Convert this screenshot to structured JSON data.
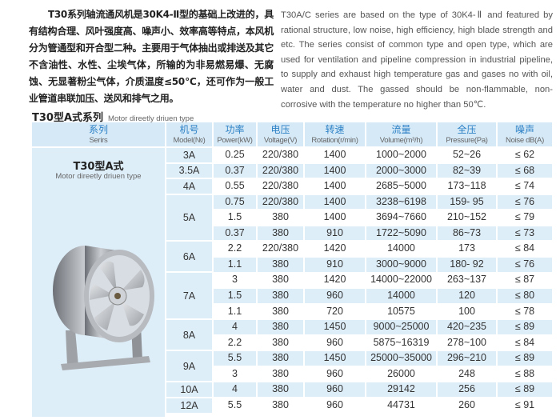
{
  "intro_zh": "T30系列轴流通风机是30K4-Ⅱ型的基础上改进的，具有结构合理、风叶强度高、噪声小、效率高等特点，本风机分为管通型和开合型二种。主要用于气体抽出或排送及其它不含油性、水性、尘埃气体，所输的为非易燃易爆、无腐蚀、无显著粉尘气体，介质温度≤50℃，还可作为一般工业管道串联加压、送风和排气之用。",
  "intro_en": "T30A/C series are based on the type of 30K4-Ⅱ and featured by rational structure, low noise, high efficiency, high blade strength and etc. The series consist of common type and open type, which are used for ventilation and pipeline compression in industrial pipeline, to supply and exhaust high temperature gas and gases no with oil, water and dust. The gassed should be non-flammable, non-corrosive with the temperature no higher than 50℃.",
  "section": {
    "title": "T30型A式系列",
    "subtitle": "Motor direetly driuen type"
  },
  "colors": {
    "header_bg": "#d5e9f7",
    "header_text": "#2b80c5",
    "shade": "#deeef9"
  },
  "table": {
    "headers": [
      {
        "zh": "系列",
        "en": "Serirs"
      },
      {
        "zh": "机号",
        "en": "Model(№)"
      },
      {
        "zh": "功率",
        "en": "Power(kW)"
      },
      {
        "zh": "电压",
        "en": "Voltage(V)"
      },
      {
        "zh": "转速",
        "en": "Rotation(r/min)"
      },
      {
        "zh": "流量",
        "en": "Volume(m³/h)"
      },
      {
        "zh": "全压",
        "en": "Pressure(Pa)"
      },
      {
        "zh": "噪声",
        "en": "Noise dB(A)"
      }
    ],
    "series": {
      "name": "T30型A式",
      "subtitle": "Motor direetly driuen type",
      "image": "axial-fan-photo"
    },
    "groups": [
      {
        "model": "3A",
        "rows": [
          [
            "0.25",
            "220/380",
            "1400",
            "1000~2000",
            "52~26",
            "≤ 62"
          ]
        ]
      },
      {
        "model": "3.5A",
        "rows": [
          [
            "0.37",
            "220/380",
            "1400",
            "2000~3000",
            "82~39",
            "≤ 68"
          ]
        ]
      },
      {
        "model": "4A",
        "rows": [
          [
            "0.55",
            "220/380",
            "1400",
            "2685~5000",
            "173~118",
            "≤ 74"
          ]
        ]
      },
      {
        "model": "5A",
        "rows": [
          [
            "0.75",
            "220/380",
            "1400",
            "3238~6198",
            "159- 95",
            "≤ 76"
          ],
          [
            "1.5",
            "380",
            "1400",
            "3694~7660",
            "210~152",
            "≤ 79"
          ],
          [
            "0.37",
            "380",
            "910",
            "1722~5090",
            "86~73",
            "≤ 73"
          ]
        ]
      },
      {
        "model": "6A",
        "rows": [
          [
            "2.2",
            "220/380",
            "1420",
            "14000",
            "173",
            "≤ 84"
          ],
          [
            "1.1",
            "380",
            "910",
            "3000~9000",
            "180- 92",
            "≤ 76"
          ]
        ]
      },
      {
        "model": "7A",
        "rows": [
          [
            "3",
            "380",
            "1420",
            "14000~22000",
            "263~137",
            "≤ 87"
          ],
          [
            "1.5",
            "380",
            "960",
            "14000",
            "120",
            "≤ 80"
          ],
          [
            "1.1",
            "380",
            "720",
            "10575",
            "100",
            "≤ 78"
          ]
        ]
      },
      {
        "model": "8A",
        "rows": [
          [
            "4",
            "380",
            "1450",
            "9000~25000",
            "420~235",
            "≤ 89"
          ],
          [
            "2.2",
            "380",
            "960",
            "5875~16319",
            "278~100",
            "≤ 84"
          ]
        ]
      },
      {
        "model": "9A",
        "rows": [
          [
            "5.5",
            "380",
            "1450",
            "25000~35000",
            "296~210",
            "≤ 89"
          ],
          [
            "3",
            "380",
            "960",
            "26000",
            "248",
            "≤ 88"
          ]
        ]
      },
      {
        "model": "10A",
        "rows": [
          [
            "4",
            "380",
            "960",
            "29142",
            "256",
            "≤ 89"
          ]
        ]
      },
      {
        "model": "12A",
        "rows": [
          [
            "5.5",
            "380",
            "960",
            "44731",
            "260",
            "≤ 91"
          ]
        ]
      }
    ]
  }
}
